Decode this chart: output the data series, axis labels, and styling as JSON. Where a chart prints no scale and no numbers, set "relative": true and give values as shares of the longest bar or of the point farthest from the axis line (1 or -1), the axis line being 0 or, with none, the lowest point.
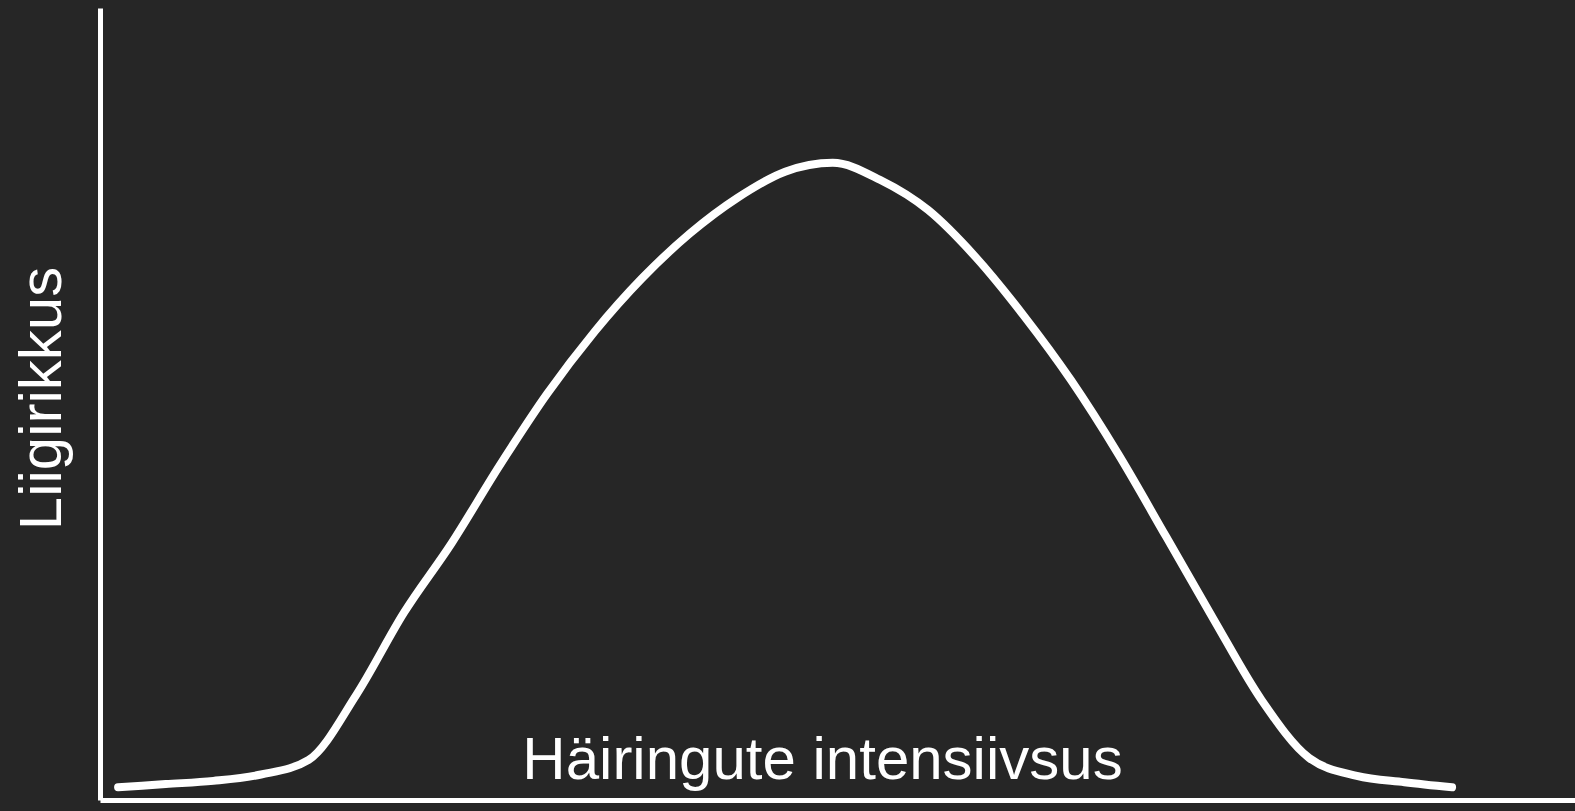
{
  "chart_data": {
    "type": "line",
    "relative": true,
    "xlabel": "Häiringute intensiivsus",
    "ylabel": "Liigirikkus",
    "grid": false,
    "line_style": "solid",
    "categories": [
      null,
      null,
      null,
      null,
      null,
      null,
      null,
      null,
      null,
      null,
      null,
      null,
      null,
      null,
      null,
      null,
      null,
      null,
      null,
      null,
      null,
      null,
      null,
      null,
      null,
      null,
      null,
      null,
      null
    ],
    "series": [
      {
        "color": "#ffffff",
        "values": [
          0.02,
          0.025,
          0.03,
          0.04,
          0.063,
          0.165,
          0.294,
          0.403,
          0.524,
          0.637,
          0.735,
          0.819,
          0.889,
          0.945,
          0.986,
          1,
          0.973,
          0.926,
          0.852,
          0.761,
          0.659,
          0.542,
          0.413,
          0.283,
          0.157,
          0.066,
          0.038,
          0.028,
          0.02
        ]
      }
    ]
  }
}
